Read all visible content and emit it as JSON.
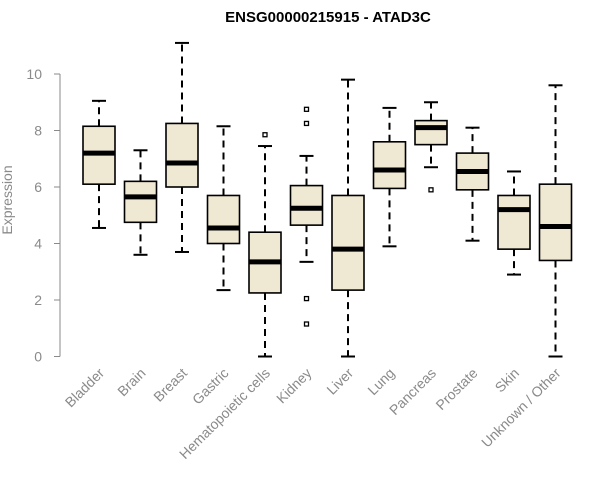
{
  "chart_data": {
    "type": "boxplot",
    "title": "ENSG00000215915 - ATAD3C",
    "xlabel": "",
    "ylabel": "Expression",
    "ylim": [
      0,
      11.2
    ],
    "yticks": [
      0,
      2,
      4,
      6,
      8,
      10
    ],
    "grid": false,
    "box_fill": "#efe8d2",
    "categories": [
      "Bladder",
      "Brain",
      "Breast",
      "Gastric",
      "Hematopoietic cells",
      "Kidney",
      "Liver",
      "Lung",
      "Pancreas",
      "Prostate",
      "Skin",
      "Unknown / Other"
    ],
    "series": [
      {
        "category": "Bladder",
        "whisker_low": 4.55,
        "q1": 6.1,
        "median": 7.2,
        "q3": 8.15,
        "whisker_high": 9.05,
        "outliers": []
      },
      {
        "category": "Brain",
        "whisker_low": 3.6,
        "q1": 4.75,
        "median": 5.65,
        "q3": 6.2,
        "whisker_high": 7.3,
        "outliers": []
      },
      {
        "category": "Breast",
        "whisker_low": 3.7,
        "q1": 6.0,
        "median": 6.85,
        "q3": 8.25,
        "whisker_high": 11.1,
        "outliers": []
      },
      {
        "category": "Gastric",
        "whisker_low": 2.35,
        "q1": 4.0,
        "median": 4.55,
        "q3": 5.7,
        "whisker_high": 8.15,
        "outliers": []
      },
      {
        "category": "Hematopoietic cells",
        "whisker_low": 0.0,
        "q1": 2.25,
        "median": 3.35,
        "q3": 4.4,
        "whisker_high": 7.45,
        "outliers": [
          7.85
        ]
      },
      {
        "category": "Kidney",
        "whisker_low": 3.35,
        "q1": 4.65,
        "median": 5.25,
        "q3": 6.05,
        "whisker_high": 7.1,
        "outliers": [
          8.75,
          8.25,
          2.05,
          1.15
        ]
      },
      {
        "category": "Liver",
        "whisker_low": 0.0,
        "q1": 2.35,
        "median": 3.8,
        "q3": 5.7,
        "whisker_high": 9.8,
        "outliers": []
      },
      {
        "category": "Lung",
        "whisker_low": 3.9,
        "q1": 5.95,
        "median": 6.6,
        "q3": 7.6,
        "whisker_high": 8.8,
        "outliers": []
      },
      {
        "category": "Pancreas",
        "whisker_low": 6.7,
        "q1": 7.5,
        "median": 8.1,
        "q3": 8.35,
        "whisker_high": 9.0,
        "outliers": [
          5.9
        ]
      },
      {
        "category": "Prostate",
        "whisker_low": 4.1,
        "q1": 5.9,
        "median": 6.55,
        "q3": 7.2,
        "whisker_high": 8.1,
        "outliers": []
      },
      {
        "category": "Skin",
        "whisker_low": 2.9,
        "q1": 3.8,
        "median": 5.2,
        "q3": 5.7,
        "whisker_high": 6.55,
        "outliers": []
      },
      {
        "category": "Unknown / Other",
        "whisker_low": 0.0,
        "q1": 3.4,
        "median": 4.6,
        "q3": 6.1,
        "whisker_high": 9.6,
        "outliers": []
      }
    ]
  }
}
